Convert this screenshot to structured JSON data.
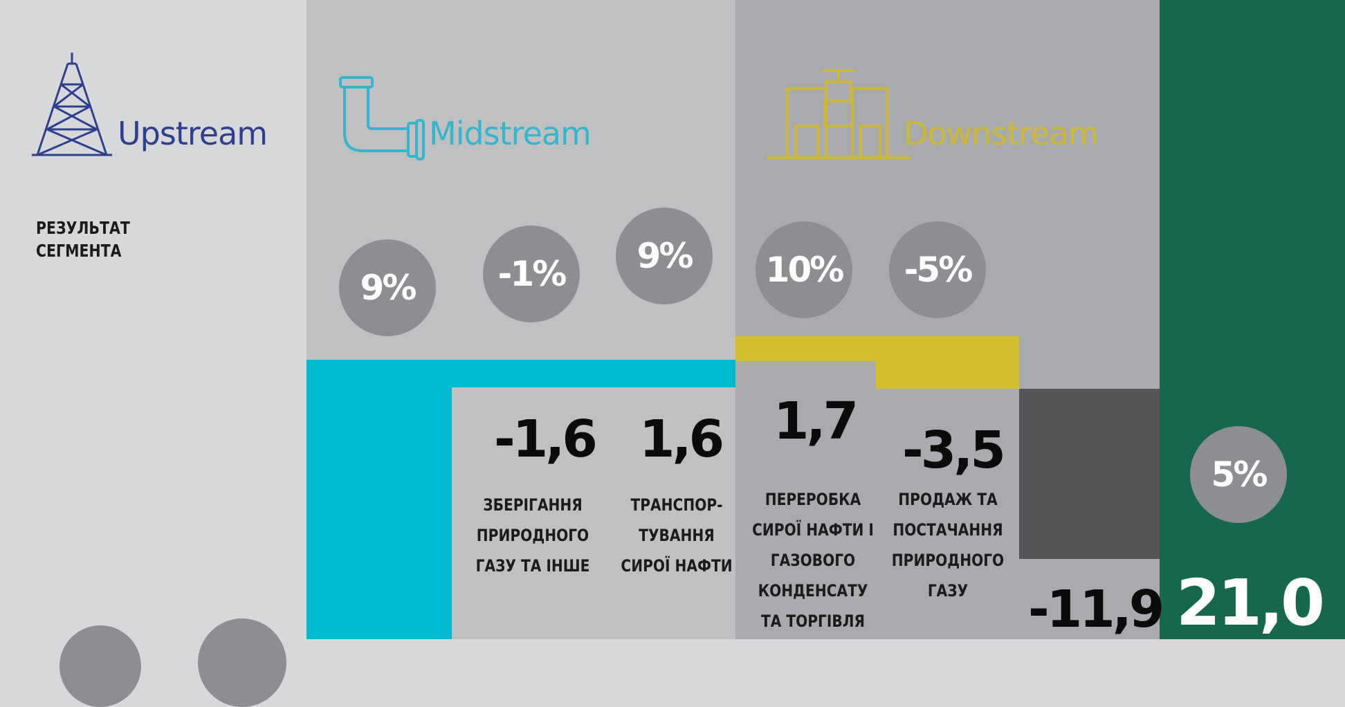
{
  "colors": {
    "upstream": "#2f3f8f",
    "midstream": "#35b6cc",
    "downstream": "#cdb836",
    "midstream_bar": "#00b8d0",
    "downstream_bar": "#d4bc2c",
    "other_bar": "#555658",
    "total_bg": "#17674f"
  },
  "icons": {
    "upstream": "oil-derrick-icon",
    "midstream": "pipe-icon",
    "downstream": "refinery-valve-icon"
  },
  "segments": {
    "upstream": "Upstream",
    "midstream": "Midstream",
    "downstream": "Downstream"
  },
  "row_label": "РЕЗУЛЬТАТ СЕГМЕНТА",
  "chart_data": {
    "type": "bar",
    "categories": [
      "ЗБЕРІГАННЯ ПРИРОДНОГО ГАЗУ ТА ІНШЕ",
      "ТРАНСПОР-ТУВАННЯ СИРОЇ НАФТИ",
      "ПЕРЕРОБКА СИРОЇ НАФТИ І ГАЗОВОГО КОНДЕНСАТУ ТА ТОРГІВЛЯ",
      "ПРОДАЖ ТА ПОСТАЧАННЯ ПРИРОДНОГО ГАЗУ",
      "",
      ""
    ],
    "values": [
      "-1,6",
      "1,6",
      "1,7",
      "-3,5",
      "-11,9",
      "21,0"
    ],
    "percent_circles": [
      "9%",
      "-1%",
      "9%",
      "10%",
      "-5%",
      "5%"
    ]
  }
}
